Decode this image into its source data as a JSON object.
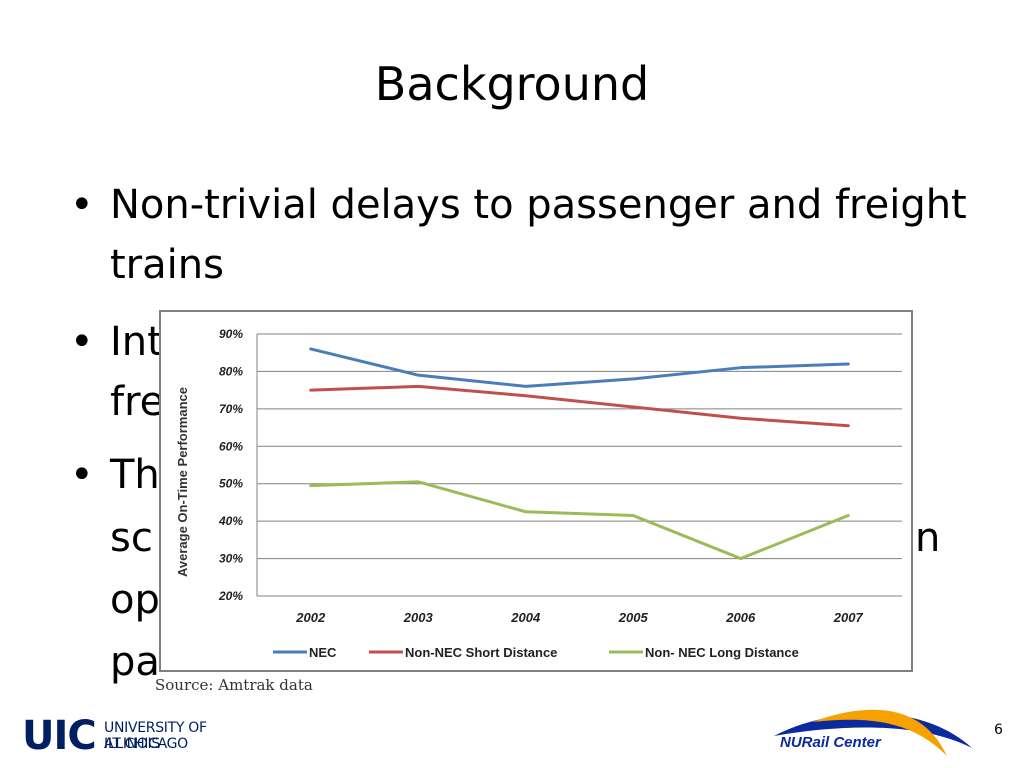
{
  "slide": {
    "title": "Background",
    "bullets": [
      [
        "Non-trivial delays to passenger and freight",
        "trains"
      ],
      [
        "Int",
        "fre"
      ],
      [
        "Th",
        "sc",
        "op",
        "pa"
      ]
    ],
    "bullet_char": "•",
    "bullet_tail": "n",
    "source": "Source: Amtrak data",
    "page_number": "6",
    "logos": {
      "uic_letters": "UIC",
      "uic_line1": "UNIVERSITY OF ILLINOIS",
      "uic_line2": "AT CHICAGO",
      "nurail": "NURail Center"
    },
    "colors": {
      "uic_navy": "#001e62",
      "nurail_orange": "#f5a100",
      "nurail_blue": "#0a2a9e"
    }
  },
  "chart_data": {
    "type": "line",
    "title": "",
    "xlabel": "",
    "ylabel": "Average On-Time Performance",
    "categories": [
      "2002",
      "2003",
      "2004",
      "2005",
      "2006",
      "2007"
    ],
    "ylim": [
      20,
      90
    ],
    "yticks": [
      20,
      30,
      40,
      50,
      60,
      70,
      80,
      90
    ],
    "ytick_labels": [
      "20%",
      "30%",
      "40%",
      "50%",
      "60%",
      "70%",
      "80%",
      "90%"
    ],
    "grid": true,
    "legend_position": "bottom",
    "series": [
      {
        "name": "NEC",
        "color": "#4a7ebb",
        "values": [
          86,
          79,
          76,
          78,
          81,
          82
        ]
      },
      {
        "name": "Non-NEC Short Distance",
        "color": "#c0504d",
        "values": [
          75,
          76,
          73.5,
          70.5,
          67.5,
          65.5
        ]
      },
      {
        "name": "Non- NEC Long Distance",
        "color": "#9bbb59",
        "values": [
          49.5,
          50.5,
          42.5,
          41.5,
          30,
          41.5
        ]
      }
    ]
  }
}
